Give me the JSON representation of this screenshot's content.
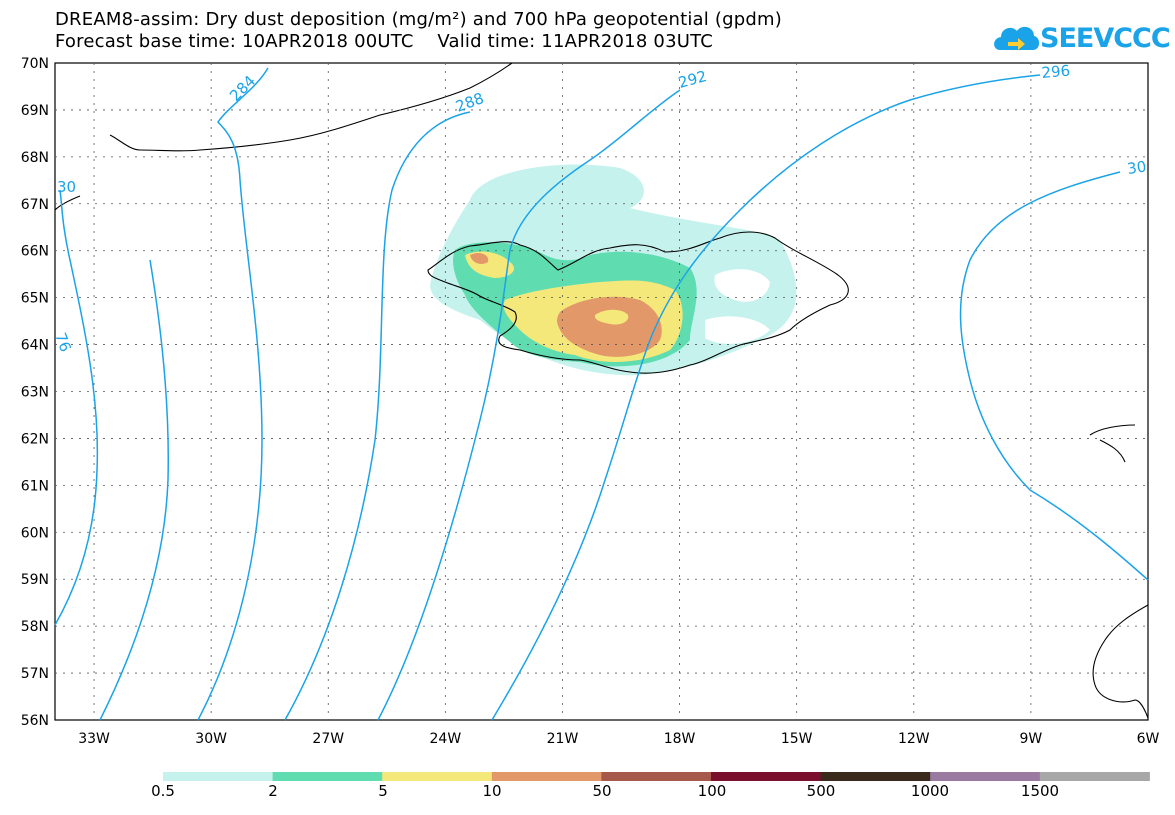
{
  "header": {
    "title_line1": "DREAM8-assim: Dry dust deposition (mg/m²) and 700 hPa geopotential (gpdm)",
    "title_line2": "Forecast base time: 10APR2018 00UTC    Valid time: 11APR2018 03UTC",
    "logo_text": "SEEVCCC"
  },
  "map": {
    "lon_range": [
      -34.0,
      -6.0
    ],
    "lat_range": [
      56.0,
      70.0
    ],
    "lon_tick_labels": [
      "33W",
      "30W",
      "27W",
      "24W",
      "21W",
      "18W",
      "15W",
      "12W",
      "9W",
      "6W"
    ],
    "lat_tick_labels": [
      "56N",
      "57N",
      "58N",
      "59N",
      "60N",
      "61N",
      "62N",
      "63N",
      "64N",
      "65N",
      "66N",
      "67N",
      "68N",
      "69N",
      "70N"
    ],
    "grid": true,
    "contour_labels": [
      "284",
      "288",
      "292",
      "296",
      "30",
      "76",
      "30"
    ],
    "contour_color": "#1aa3e8"
  },
  "legend": {
    "labels": [
      "0.5",
      "2",
      "5",
      "10",
      "50",
      "100",
      "500",
      "1000",
      "1500"
    ],
    "colors": [
      "#c6f2ee",
      "#5fdcb0",
      "#f5e87a",
      "#e3986a",
      "#a6584a",
      "#7a0f2e",
      "#3a2a1c",
      "#9a7aa0",
      "#a7a7a7"
    ]
  }
}
